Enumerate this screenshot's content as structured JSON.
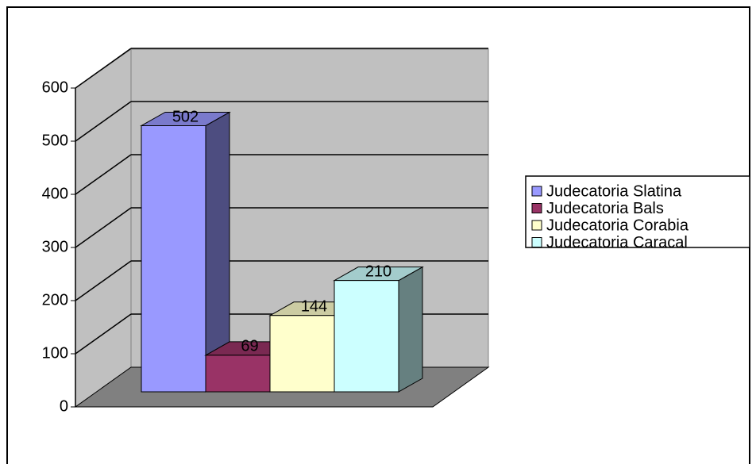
{
  "chart_data": {
    "type": "bar3d",
    "series": [
      {
        "name": "Judecatoria Slatina",
        "color": "#9999ff",
        "values": [
          502
        ]
      },
      {
        "name": "Judecatoria Bals",
        "color": "#993366",
        "values": [
          69
        ]
      },
      {
        "name": "Judecatoria Corabia",
        "color": "#ffffcc",
        "values": [
          144
        ]
      },
      {
        "name": "Judecatoria Caracal",
        "color": "#ccffff",
        "values": [
          210
        ]
      }
    ],
    "ylim": [
      0,
      600
    ],
    "yticks": [
      0,
      100,
      200,
      300,
      400,
      500,
      600
    ],
    "grid": true,
    "legend": "right"
  }
}
